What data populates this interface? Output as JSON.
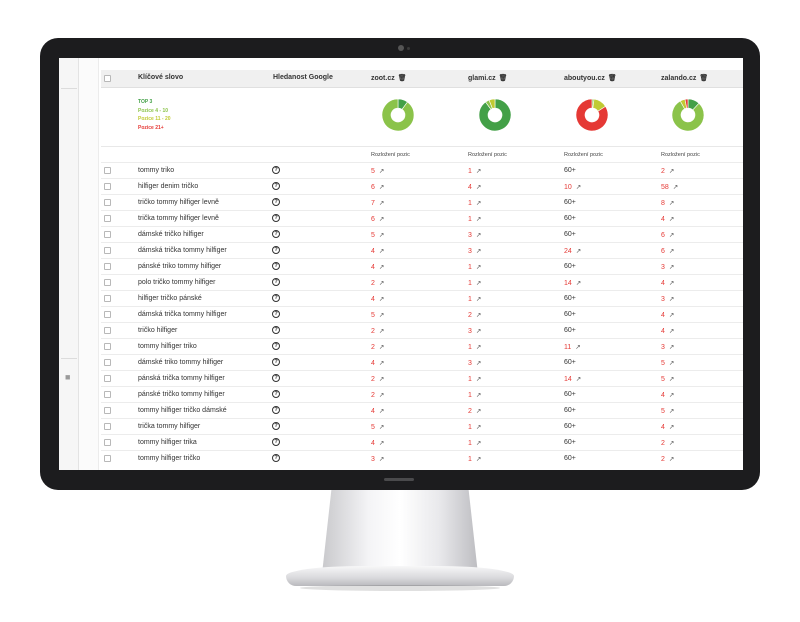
{
  "header": {
    "keyword_col": "Klíčové slovo",
    "search_col": "Hledanost Google",
    "sites": [
      "zoot.cz",
      "glami.cz",
      "aboutyou.cz",
      "zalando.cz"
    ]
  },
  "legend": [
    {
      "label": "TOP 3",
      "color": "#43a047"
    },
    {
      "label": "Pozice 4 - 10",
      "color": "#8bc34a"
    },
    {
      "label": "Pozice 11 - 20",
      "color": "#c0ca33"
    },
    {
      "label": "Pozice 21+",
      "color": "#e53935"
    }
  ],
  "distribution_label": "Rozložení pozic",
  "rows": [
    {
      "keyword": "tommy triko",
      "positions": [
        "5",
        "1",
        "60+",
        "2"
      ]
    },
    {
      "keyword": "hilfiger denim tričko",
      "positions": [
        "6",
        "4",
        "10",
        "58"
      ]
    },
    {
      "keyword": "tričko tommy hilfiger levně",
      "positions": [
        "7",
        "1",
        "60+",
        "8"
      ]
    },
    {
      "keyword": "trička tommy hilfiger levně",
      "positions": [
        "6",
        "1",
        "60+",
        "4"
      ]
    },
    {
      "keyword": "dámské tričko hilfiger",
      "positions": [
        "5",
        "3",
        "60+",
        "6"
      ]
    },
    {
      "keyword": "dámská trička tommy hilfiger",
      "positions": [
        "4",
        "3",
        "24",
        "6"
      ]
    },
    {
      "keyword": "pánské triko tommy hilfiger",
      "positions": [
        "4",
        "1",
        "60+",
        "3"
      ]
    },
    {
      "keyword": "polo tričko tommy hilfiger",
      "positions": [
        "2",
        "1",
        "14",
        "4"
      ]
    },
    {
      "keyword": "hilfiger tričko pánské",
      "positions": [
        "4",
        "1",
        "60+",
        "3"
      ]
    },
    {
      "keyword": "dámská trička tommy hilfiger",
      "positions": [
        "5",
        "2",
        "60+",
        "4"
      ]
    },
    {
      "keyword": "tričko hilfiger",
      "positions": [
        "2",
        "3",
        "60+",
        "4"
      ]
    },
    {
      "keyword": "tommy hilfiger triko",
      "positions": [
        "2",
        "1",
        "11",
        "3"
      ]
    },
    {
      "keyword": "dámské triko tommy hilfiger",
      "positions": [
        "4",
        "3",
        "60+",
        "5"
      ]
    },
    {
      "keyword": "pánská trička tommy hilfiger",
      "positions": [
        "2",
        "1",
        "14",
        "5"
      ]
    },
    {
      "keyword": "pánské tričko tommy hilfiger",
      "positions": [
        "2",
        "1",
        "60+",
        "4"
      ]
    },
    {
      "keyword": "tommy hilfiger tričko dámské",
      "positions": [
        "4",
        "2",
        "60+",
        "5"
      ]
    },
    {
      "keyword": "trička tommy hilfiger",
      "positions": [
        "5",
        "1",
        "60+",
        "4"
      ]
    },
    {
      "keyword": "tommy hilfiger trika",
      "positions": [
        "4",
        "1",
        "60+",
        "2"
      ]
    },
    {
      "keyword": "tommy hilfiger tričko",
      "positions": [
        "3",
        "1",
        "60+",
        "2"
      ]
    }
  ],
  "pies": [
    [
      {
        "value": 0.1,
        "color": "#43a047"
      },
      {
        "value": 0.9,
        "color": "#8bc34a"
      }
    ],
    [
      {
        "value": 0.9,
        "color": "#43a047"
      },
      {
        "value": 0.04,
        "color": "#8bc34a"
      },
      {
        "value": 0.06,
        "color": "#c0ca33"
      }
    ],
    [
      {
        "value": 0.02,
        "color": "#8bc34a"
      },
      {
        "value": 0.14,
        "color": "#c0ca33"
      },
      {
        "value": 0.84,
        "color": "#e53935"
      }
    ],
    [
      {
        "value": 0.12,
        "color": "#43a047"
      },
      {
        "value": 0.8,
        "color": "#8bc34a"
      },
      {
        "value": 0.05,
        "color": "#c0ca33"
      },
      {
        "value": 0.03,
        "color": "#e53935"
      }
    ]
  ],
  "icons": {
    "trash": "trash-icon",
    "help": "question-circle-icon",
    "external": "external-link-icon",
    "sidebar": "home-icon"
  }
}
